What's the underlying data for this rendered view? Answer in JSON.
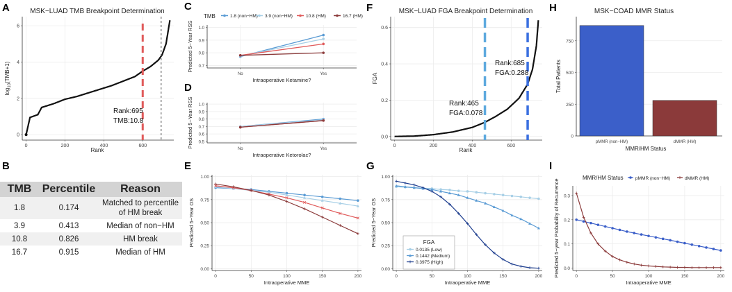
{
  "panel_letters": {
    "A": "A",
    "B": "B",
    "C": "C",
    "D": "D",
    "E": "E",
    "F": "F",
    "G": "G",
    "H": "H",
    "I": "I"
  },
  "colors": {
    "blue": "#3b5fc9",
    "red": "#8b3a3a",
    "lightblue": "#a7cfe6",
    "medblue": "#5a9bd4",
    "darkblue": "#1f3f8f",
    "lightred": "#e88080",
    "dashred": "#e05a5a",
    "dashblue": "#3a6fe0",
    "dashlb": "#5da9de"
  },
  "table": {
    "headers": [
      "TMB",
      "Percentile",
      "Reason"
    ],
    "rows": [
      {
        "tmb": "1.8",
        "pct": "0.174",
        "r1": "Matched to percentile",
        "r2": "of HM break"
      },
      {
        "tmb": "3.9",
        "pct": "0.413",
        "r1": "Median of non−HM",
        "r2": ""
      },
      {
        "tmb": "10.8",
        "pct": "0.826",
        "r1": "HM break",
        "r2": ""
      },
      {
        "tmb": "16.7",
        "pct": "0.915",
        "r1": "Median of HM",
        "r2": ""
      }
    ]
  },
  "chart_data": [
    {
      "id": "A",
      "type": "scatter",
      "title": "MSK−LUAD TMB Breakpoint Determination",
      "xlabel": "Rank",
      "ylabel": "log10(TMB+1)",
      "xlim": [
        -20,
        760
      ],
      "ylim": [
        -0.3,
        6.5
      ],
      "xticks": [
        0,
        200,
        400,
        600
      ],
      "yticks": [
        0,
        2,
        4,
        6
      ],
      "curve_points": [
        [
          0,
          0
        ],
        [
          20,
          0.95
        ],
        [
          60,
          1.1
        ],
        [
          80,
          1.5
        ],
        [
          140,
          1.7
        ],
        [
          200,
          1.95
        ],
        [
          260,
          2.1
        ],
        [
          320,
          2.3
        ],
        [
          380,
          2.5
        ],
        [
          440,
          2.7
        ],
        [
          500,
          2.95
        ],
        [
          560,
          3.2
        ],
        [
          600,
          3.5
        ],
        [
          640,
          3.75
        ],
        [
          680,
          4.1
        ],
        [
          700,
          4.4
        ],
        [
          720,
          5.0
        ],
        [
          740,
          6.3
        ]
      ],
      "annotation": "Rank:695\nTMB:10.8",
      "annotation_lines": [
        "Rank:695",
        "TMB:10.8"
      ],
      "vline_red": 600,
      "vline_dotted": 695
    },
    {
      "id": "C",
      "type": "line",
      "title": "",
      "legend_title": "TMB",
      "xlabel": "Intraoperative Ketamine?",
      "ylabel": "Predicted 5−Year RSS",
      "categories": [
        "No",
        "Yes"
      ],
      "ylim": [
        0.68,
        1.02
      ],
      "yticks": [
        0.7,
        0.8,
        0.9,
        1.0
      ],
      "series": [
        {
          "name": "1.8 (non−HM)",
          "values": [
            0.77,
            0.94
          ]
        },
        {
          "name": "3.9 (non−HM)",
          "values": [
            0.775,
            0.91
          ]
        },
        {
          "name": "10.8 (HM)",
          "values": [
            0.78,
            0.87
          ]
        },
        {
          "name": "16.7 (HM)",
          "values": [
            0.78,
            0.8
          ]
        }
      ]
    },
    {
      "id": "D",
      "type": "line",
      "title": "",
      "xlabel": "Intraoperative Ketorolac?",
      "ylabel": "Predicted 5−Year RSS",
      "categories": [
        "No",
        "Yes"
      ],
      "ylim": [
        0.48,
        1.02
      ],
      "yticks": [
        0.5,
        0.6,
        0.7,
        0.8,
        0.9,
        1.0
      ],
      "series": [
        {
          "name": "1.8 (non−HM)",
          "values": [
            0.7,
            0.8
          ]
        },
        {
          "name": "3.9 (non−HM)",
          "values": [
            0.7,
            0.79
          ]
        },
        {
          "name": "10.8 (HM)",
          "values": [
            0.69,
            0.78
          ]
        },
        {
          "name": "16.7 (HM)",
          "values": [
            0.69,
            0.78
          ]
        }
      ]
    },
    {
      "id": "E",
      "type": "line",
      "title": "",
      "xlabel": "Intraoperative MME",
      "ylabel": "Predicted 5−Year OS",
      "x": [
        0,
        25,
        50,
        75,
        100,
        125,
        150,
        175,
        200
      ],
      "ylim": [
        -0.02,
        1.02
      ],
      "yticks": [
        0,
        0.25,
        0.5,
        0.75,
        1.0
      ],
      "yticklabels": [
        "0.00",
        "0.25",
        "0.50",
        "0.75",
        "1.00"
      ],
      "xticks": [
        0,
        50,
        100,
        150,
        200
      ],
      "series": [
        {
          "name": "1.8 (non−HM)",
          "values": [
            0.88,
            0.87,
            0.86,
            0.84,
            0.82,
            0.8,
            0.78,
            0.76,
            0.74
          ]
        },
        {
          "name": "3.9 (non−HM)",
          "values": [
            0.89,
            0.87,
            0.85,
            0.83,
            0.8,
            0.77,
            0.74,
            0.71,
            0.68
          ]
        },
        {
          "name": "10.8 (HM)",
          "values": [
            0.9,
            0.88,
            0.85,
            0.81,
            0.77,
            0.72,
            0.66,
            0.6,
            0.55
          ]
        },
        {
          "name": "16.7 (HM)",
          "values": [
            0.92,
            0.89,
            0.85,
            0.8,
            0.73,
            0.65,
            0.56,
            0.47,
            0.38
          ]
        }
      ]
    },
    {
      "id": "F",
      "type": "scatter",
      "title": "MSK−LUAD FGA Breakpoint Determination",
      "xlabel": "Rank",
      "ylabel": "FGA",
      "xlim": [
        -20,
        760
      ],
      "ylim": [
        -0.02,
        0.66
      ],
      "xticks": [
        0,
        200,
        400,
        600
      ],
      "yticks": [
        0,
        0.2,
        0.4,
        0.6
      ],
      "yticklabels": [
        "0.0",
        "0.2",
        "0.4",
        "0.6"
      ],
      "curve_points": [
        [
          0,
          0
        ],
        [
          100,
          0.002
        ],
        [
          200,
          0.01
        ],
        [
          300,
          0.025
        ],
        [
          400,
          0.05
        ],
        [
          465,
          0.078
        ],
        [
          520,
          0.11
        ],
        [
          580,
          0.15
        ],
        [
          640,
          0.21
        ],
        [
          685,
          0.288
        ],
        [
          710,
          0.37
        ],
        [
          730,
          0.5
        ],
        [
          740,
          0.64
        ]
      ],
      "annotations": [
        {
          "lines": [
            "Rank:465",
            "FGA:0.078"
          ]
        },
        {
          "lines": [
            "Rank:685",
            "FGA:0.288"
          ]
        }
      ],
      "vline_lb": 465,
      "vline_b": 685
    },
    {
      "id": "G",
      "type": "line",
      "title": "",
      "xlabel": "Intraoperative MME",
      "ylabel": "Predicted 5−Year OS",
      "legend_title": "FGA",
      "x": [
        0,
        12.5,
        25,
        37.5,
        50,
        62.5,
        75,
        87.5,
        100,
        112.5,
        125,
        137.5,
        150,
        162.5,
        175,
        187.5,
        200
      ],
      "ylim": [
        -0.02,
        1.02
      ],
      "yticks": [
        0,
        0.25,
        0.5,
        0.75,
        1.0
      ],
      "yticklabels": [
        "0.00",
        "0.25",
        "0.50",
        "0.75",
        "1.00"
      ],
      "xticks": [
        0,
        50,
        100,
        150,
        200
      ],
      "series": [
        {
          "name": "0.0135 (Low)",
          "values": [
            0.89,
            0.885,
            0.88,
            0.875,
            0.87,
            0.86,
            0.855,
            0.845,
            0.84,
            0.83,
            0.82,
            0.81,
            0.8,
            0.79,
            0.78,
            0.77,
            0.76
          ]
        },
        {
          "name": "0.1442 (Medium)",
          "values": [
            0.9,
            0.89,
            0.88,
            0.87,
            0.86,
            0.84,
            0.82,
            0.8,
            0.77,
            0.74,
            0.71,
            0.67,
            0.63,
            0.58,
            0.54,
            0.49,
            0.44
          ]
        },
        {
          "name": "0.3975 (High)",
          "values": [
            0.95,
            0.93,
            0.91,
            0.88,
            0.84,
            0.78,
            0.7,
            0.6,
            0.49,
            0.37,
            0.26,
            0.17,
            0.1,
            0.05,
            0.025,
            0.01,
            0.005
          ]
        }
      ]
    },
    {
      "id": "H",
      "type": "bar",
      "title": "MSK−COAD MMR Status",
      "xlabel": "MMR/HM Status",
      "ylabel": "Total Patients",
      "categories": [
        "pMMR (non−HM)",
        "dMMR (HM)"
      ],
      "values": [
        870,
        280
      ],
      "ylim": [
        0,
        940
      ],
      "yticks": [
        0,
        250,
        500,
        750
      ]
    },
    {
      "id": "I",
      "type": "line",
      "title": "",
      "legend_title": "MMR/HM Status",
      "xlabel": "Intraoperative MME",
      "ylabel": "Predicted 5−year Probability of Recurrence",
      "x": [
        0,
        10,
        20,
        30,
        40,
        50,
        60,
        70,
        80,
        90,
        100,
        110,
        120,
        130,
        140,
        150,
        160,
        170,
        180,
        190,
        200
      ],
      "ylim": [
        -0.01,
        0.34
      ],
      "yticks": [
        0,
        0.1,
        0.2,
        0.3
      ],
      "yticklabels": [
        "0.0",
        "0.1",
        "0.2",
        "0.3"
      ],
      "xticks": [
        0,
        50,
        100,
        150,
        200
      ],
      "series": [
        {
          "name": "pMMR (non−HM)",
          "values": [
            0.2,
            0.193,
            0.186,
            0.179,
            0.172,
            0.165,
            0.158,
            0.151,
            0.145,
            0.139,
            0.133,
            0.127,
            0.121,
            0.115,
            0.109,
            0.103,
            0.097,
            0.091,
            0.085,
            0.079,
            0.073
          ]
        },
        {
          "name": "dMMR (HM)",
          "values": [
            0.31,
            0.21,
            0.145,
            0.1,
            0.07,
            0.048,
            0.034,
            0.024,
            0.017,
            0.012,
            0.009,
            0.007,
            0.005,
            0.004,
            0.003,
            0.003,
            0.002,
            0.002,
            0.002,
            0.002,
            0.002
          ]
        }
      ]
    }
  ]
}
